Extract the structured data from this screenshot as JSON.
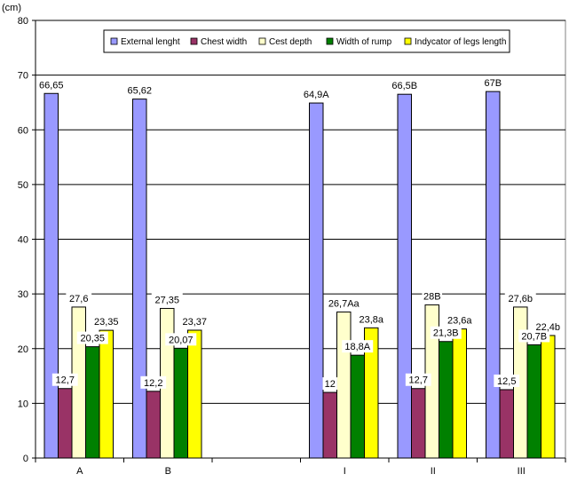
{
  "chart_data": {
    "type": "bar",
    "y_unit": "(cm)",
    "ylim": [
      0,
      80
    ],
    "yticks": [
      "0",
      "10",
      "20",
      "30",
      "40",
      "50",
      "60",
      "70",
      "80"
    ],
    "grid": true,
    "legend_position": "top-right",
    "categories": [
      "A",
      "B",
      "",
      "I",
      "II",
      "III"
    ],
    "series": [
      {
        "name": "External lenght",
        "color": "#9999ff",
        "values": [
          66.65,
          65.62,
          null,
          64.9,
          66.5,
          67
        ],
        "labels": [
          "66,65",
          "65,62",
          "",
          "64,9A",
          "66,5B",
          "67B"
        ]
      },
      {
        "name": "Chest width",
        "color": "#993366",
        "values": [
          12.7,
          12.2,
          null,
          12,
          12.7,
          12.5
        ],
        "labels": [
          "12,7",
          "12,2",
          "",
          "12",
          "12,7",
          "12,5"
        ]
      },
      {
        "name": "Cest depth",
        "color": "#ffffcc",
        "values": [
          27.6,
          27.35,
          null,
          26.7,
          28,
          27.6
        ],
        "labels": [
          "27,6",
          "27,35",
          "",
          "26,7Aa",
          "28B",
          "27,6b"
        ]
      },
      {
        "name": "Width of rump",
        "color": "#008000",
        "values": [
          20.35,
          20.07,
          null,
          18.8,
          21.3,
          20.7
        ],
        "labels": [
          "20,35",
          "20,07",
          "",
          "18,8A",
          "21,3B",
          "20,7B"
        ]
      },
      {
        "name": "Indycator of legs length",
        "color": "#ffff00",
        "values": [
          23.35,
          23.37,
          null,
          23.8,
          23.6,
          22.4
        ],
        "labels": [
          "23,35",
          "23,37",
          "",
          "23,8a",
          "23,6a",
          "22,4b"
        ]
      }
    ]
  }
}
